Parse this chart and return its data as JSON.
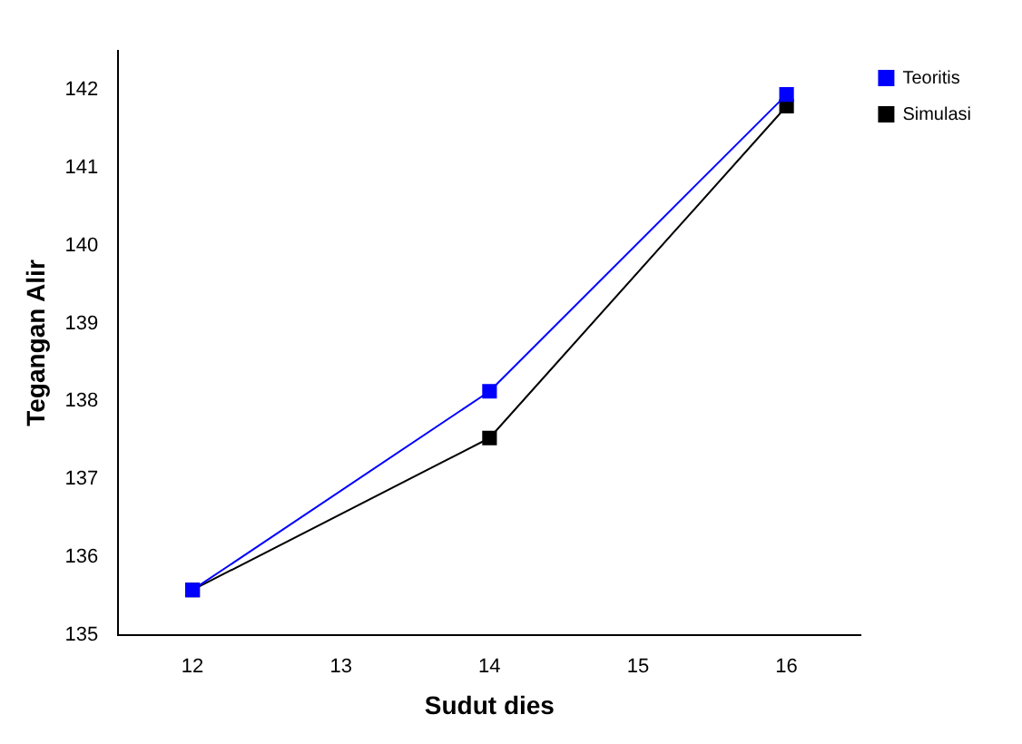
{
  "chart_data": {
    "type": "line",
    "xlabel": "Sudut dies",
    "ylabel": "Tegangan Alir",
    "x": [
      12,
      14,
      16
    ],
    "series": [
      {
        "name": "Simulasi",
        "color": "#000000",
        "values": [
          135.58,
          137.53,
          141.79
        ]
      },
      {
        "name": "Teoritis",
        "color": "#0000ff",
        "values": [
          135.58,
          138.13,
          141.94
        ]
      }
    ],
    "xlim": [
      11.5,
      16.5
    ],
    "xticks": [
      12,
      13,
      14,
      15,
      16
    ],
    "ylim": [
      135,
      142.5
    ],
    "yticks": [
      135,
      136,
      137,
      138,
      139,
      140,
      141,
      142
    ],
    "grid": false,
    "legend": "top right",
    "marker": "square",
    "line_style": "solid"
  }
}
